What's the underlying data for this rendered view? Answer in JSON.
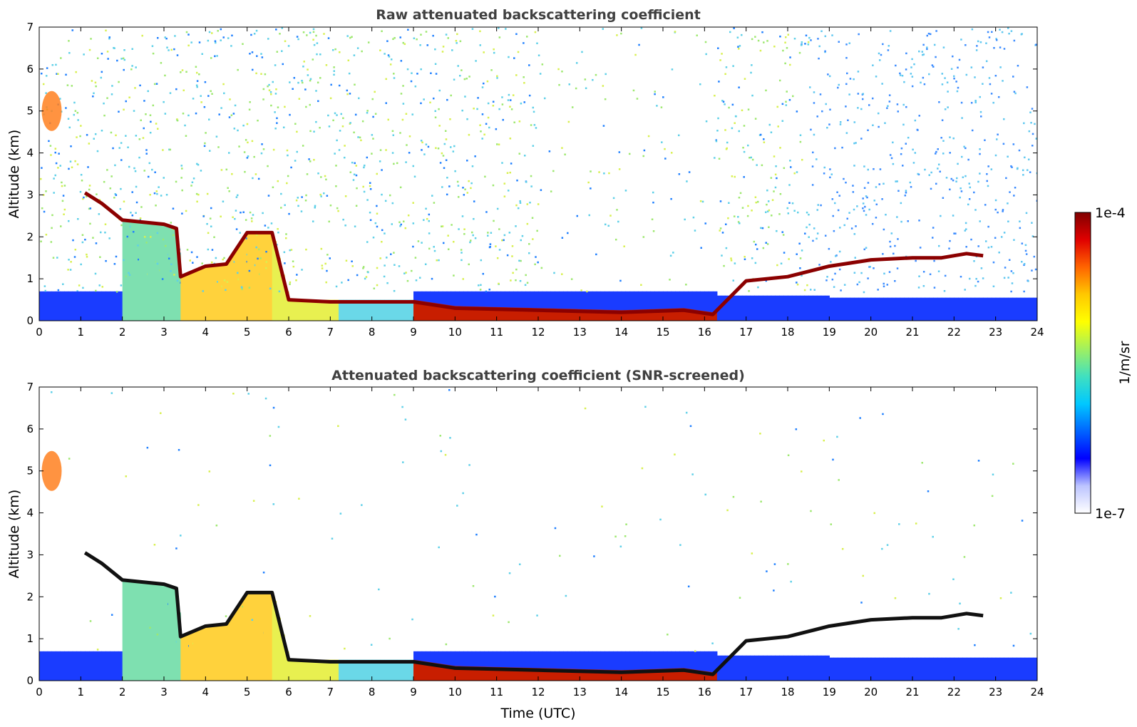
{
  "chart_data": [
    {
      "type": "heatmap",
      "title": "Raw attenuated backscattering coefficient",
      "xlabel": "",
      "ylabel": "Altitude (km)",
      "xlim": [
        0,
        24
      ],
      "ylim": [
        0,
        7
      ],
      "xticks": [
        "0",
        "1",
        "2",
        "3",
        "4",
        "5",
        "6",
        "7",
        "8",
        "9",
        "10",
        "11",
        "12",
        "13",
        "14",
        "15",
        "16",
        "17",
        "18",
        "19",
        "20",
        "21",
        "22",
        "23",
        "24"
      ],
      "yticks": [
        "0",
        "1",
        "2",
        "3",
        "4",
        "5",
        "6",
        "7"
      ],
      "grid": false,
      "cloud_layer_km": [
        [
          1.1,
          3.05
        ],
        [
          1.5,
          2.8
        ],
        [
          2.0,
          2.4
        ],
        [
          3.0,
          2.3
        ],
        [
          3.3,
          2.2
        ],
        [
          3.4,
          1.05
        ],
        [
          4.0,
          1.3
        ],
        [
          4.5,
          1.35
        ],
        [
          5.0,
          2.1
        ],
        [
          5.6,
          2.1
        ],
        [
          6.0,
          0.5
        ],
        [
          7.0,
          0.45
        ],
        [
          8.0,
          0.45
        ],
        [
          9.0,
          0.45
        ],
        [
          10.0,
          0.3
        ],
        [
          12.0,
          0.25
        ],
        [
          14.0,
          0.2
        ],
        [
          15.5,
          0.25
        ],
        [
          16.2,
          0.15
        ],
        [
          17.0,
          0.95
        ],
        [
          18.0,
          1.05
        ],
        [
          19.0,
          1.3
        ],
        [
          20.0,
          1.45
        ],
        [
          21.0,
          1.5
        ],
        [
          21.7,
          1.5
        ],
        [
          22.3,
          1.6
        ],
        [
          22.7,
          1.55
        ]
      ],
      "screened": false
    },
    {
      "type": "heatmap",
      "title": "Attenuated backscattering coefficient (SNR-screened)",
      "xlabel": "Time (UTC)",
      "ylabel": "Altitude (km)",
      "xlim": [
        0,
        24
      ],
      "ylim": [
        0,
        7
      ],
      "xticks": [
        "0",
        "1",
        "2",
        "3",
        "4",
        "5",
        "6",
        "7",
        "8",
        "9",
        "10",
        "11",
        "12",
        "13",
        "14",
        "15",
        "16",
        "17",
        "18",
        "19",
        "20",
        "21",
        "22",
        "23",
        "24"
      ],
      "yticks": [
        "0",
        "1",
        "2",
        "3",
        "4",
        "5",
        "6",
        "7"
      ],
      "grid": false,
      "cloud_layer_km": [
        [
          1.1,
          3.05
        ],
        [
          1.5,
          2.8
        ],
        [
          2.0,
          2.4
        ],
        [
          3.0,
          2.3
        ],
        [
          3.3,
          2.2
        ],
        [
          3.4,
          1.05
        ],
        [
          4.0,
          1.3
        ],
        [
          4.5,
          1.35
        ],
        [
          5.0,
          2.1
        ],
        [
          5.6,
          2.1
        ],
        [
          6.0,
          0.5
        ],
        [
          7.0,
          0.45
        ],
        [
          8.0,
          0.45
        ],
        [
          9.0,
          0.45
        ],
        [
          10.0,
          0.3
        ],
        [
          12.0,
          0.25
        ],
        [
          14.0,
          0.2
        ],
        [
          15.5,
          0.25
        ],
        [
          16.2,
          0.15
        ],
        [
          17.0,
          0.95
        ],
        [
          18.0,
          1.05
        ],
        [
          19.0,
          1.3
        ],
        [
          20.0,
          1.45
        ],
        [
          21.0,
          1.5
        ],
        [
          21.7,
          1.5
        ],
        [
          22.3,
          1.6
        ],
        [
          22.7,
          1.55
        ]
      ],
      "screened": true
    }
  ],
  "colorbar": {
    "label": "1/m/sr",
    "max_label": "1e-4",
    "min_label": "1e-7",
    "range": [
      1e-07,
      0.0001
    ],
    "scale": "log",
    "colors": [
      "#ffffff",
      "#bcc4ff",
      "#0000ff",
      "#0064ff",
      "#00c8ff",
      "#40e0c0",
      "#a0f060",
      "#ffff00",
      "#ffc800",
      "#ff6400",
      "#e00000",
      "#800000"
    ]
  }
}
